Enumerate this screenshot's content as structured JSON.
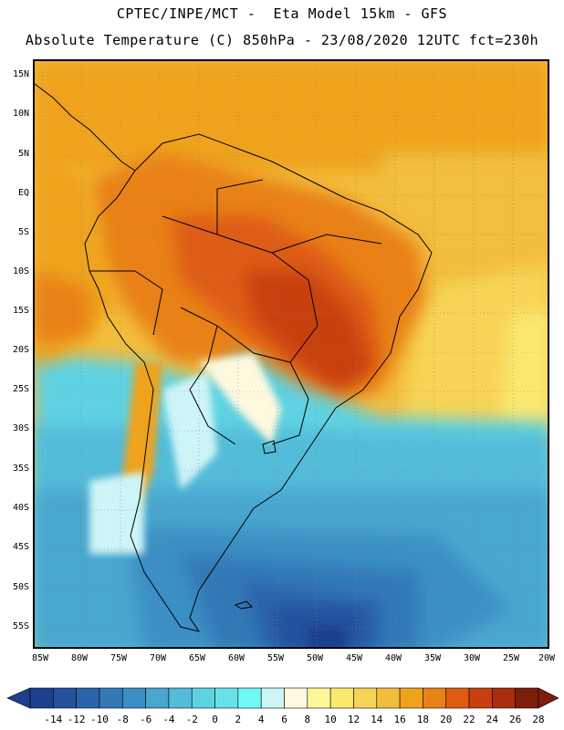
{
  "header": {
    "line1": "CPTEC/INPE/MCT -  Eta Model 15km - GFS",
    "line2": "Absolute Temperature (C) 850hPa - 23/08/2020 12UTC fct=230h"
  },
  "map": {
    "variable": "Absolute Temperature",
    "units": "C",
    "level": "850hPa",
    "lat_labels": [
      "15N",
      "10N",
      "5N",
      "EQ",
      "5S",
      "10S",
      "15S",
      "20S",
      "25S",
      "30S",
      "35S",
      "40S",
      "45S",
      "50S",
      "55S"
    ],
    "lon_labels": [
      "85W",
      "80W",
      "75W",
      "70W",
      "65W",
      "60W",
      "55W",
      "50W",
      "45W",
      "40W",
      "35W",
      "30W",
      "25W",
      "20W"
    ]
  },
  "colorbar": {
    "labels": [
      "-14",
      "-12",
      "-10",
      "-8",
      "-6",
      "-4",
      "-2",
      "0",
      "2",
      "4",
      "6",
      "8",
      "10",
      "12",
      "14",
      "16",
      "18",
      "20",
      "22",
      "24",
      "26",
      "28"
    ],
    "colors": [
      "#1c3f8e",
      "#24509c",
      "#2c64ab",
      "#3279b6",
      "#3b8fc4",
      "#48a6cf",
      "#52bcd9",
      "#5fd2e2",
      "#66e3ea",
      "#6ffaf8",
      "#cdf4f7",
      "#fdf8de",
      "#fdf79a",
      "#fbe86e",
      "#f7d455",
      "#f3bd3c",
      "#efa31d",
      "#e98119",
      "#de5b13",
      "#c8400f",
      "#a92d0e",
      "#7d1d0c"
    ]
  }
}
